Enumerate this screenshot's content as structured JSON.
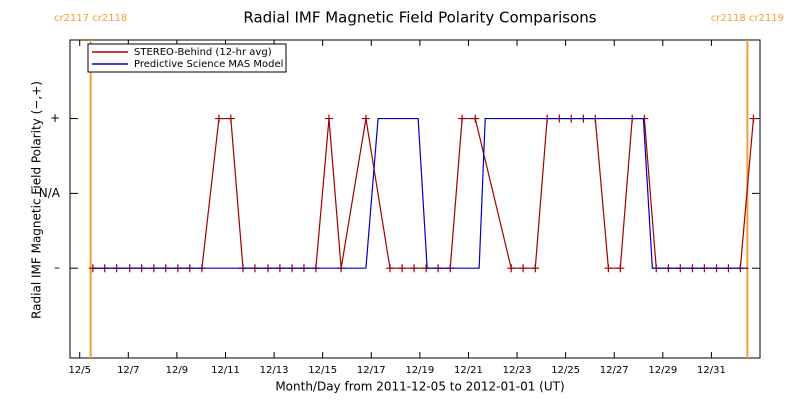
{
  "chart_data": {
    "type": "line",
    "title": "Radial IMF Magnetic Field Polarity Comparisons",
    "x_label": "Month/Day from 2011-12-05 to 2012-01-01 (UT)",
    "y_label": "Radial IMF Magnetic Field Polarity (−,+)",
    "xlim": [
      -0.4,
      28
    ],
    "ylim": [
      -2.2,
      2.05
    ],
    "xticks": [
      {
        "value": 0,
        "label": "12/5"
      },
      {
        "value": 2,
        "label": "12/7"
      },
      {
        "value": 4,
        "label": "12/9"
      },
      {
        "value": 6,
        "label": "12/11"
      },
      {
        "value": 8,
        "label": "12/13"
      },
      {
        "value": 10,
        "label": "12/15"
      },
      {
        "value": 12,
        "label": "12/17"
      },
      {
        "value": 14,
        "label": "12/19"
      },
      {
        "value": 16,
        "label": "12/21"
      },
      {
        "value": 18,
        "label": "12/23"
      },
      {
        "value": 20,
        "label": "12/25"
      },
      {
        "value": 22,
        "label": "12/27"
      },
      {
        "value": 24,
        "label": "12/29"
      },
      {
        "value": 26,
        "label": "12/31"
      }
    ],
    "yticks": [
      {
        "value": 1,
        "label": "+"
      },
      {
        "value": 0,
        "label": "N/A"
      },
      {
        "value": -1,
        "label": "–"
      }
    ],
    "legend_position": "upper left",
    "carrington_lines": {
      "color": "#f0a030",
      "lines": [
        {
          "x": 0.45,
          "label": "cr2117 cr2118"
        },
        {
          "x": 27.48,
          "label": "cr2118 cr2119"
        }
      ]
    },
    "series": [
      {
        "name": "STEREO-Behind (12-hr avg)",
        "color": "#a00000",
        "markers": true,
        "x": [
          0.54,
          1.03,
          1.52,
          2.06,
          2.55,
          3.05,
          3.54,
          4.04,
          4.53,
          5.03,
          5.73,
          6.22,
          6.72,
          7.21,
          7.75,
          8.24,
          8.74,
          9.23,
          9.72,
          10.26,
          10.76,
          11.78,
          12.77,
          13.27,
          13.76,
          14.26,
          14.75,
          15.25,
          15.74,
          16.28,
          17.76,
          18.25,
          18.75,
          19.24,
          19.74,
          20.23,
          20.73,
          21.22,
          21.76,
          22.25,
          22.74,
          23.24,
          23.73,
          24.23,
          24.72,
          25.22,
          25.71,
          26.21,
          26.7,
          27.19,
          27.73
        ],
        "values": [
          -1,
          -1,
          -1,
          -1,
          -1,
          -1,
          -1,
          -1,
          -1,
          -1,
          1,
          1,
          -1,
          -1,
          -1,
          -1,
          -1,
          -1,
          -1,
          1,
          -1,
          1,
          -1,
          -1,
          -1,
          -1,
          -1,
          -1,
          1,
          1,
          -1,
          -1,
          -1,
          1,
          1,
          1,
          1,
          1,
          -1,
          -1,
          1,
          1,
          -1,
          -1,
          -1,
          -1,
          -1,
          -1,
          -1,
          -1,
          1
        ]
      },
      {
        "name": "Predictive Science MAS Model",
        "color": "#0000c0",
        "markers": false,
        "x": [
          0.54,
          11.78,
          12.28,
          13.93,
          14.3,
          16.44,
          16.69,
          23.2,
          23.57,
          27.52
        ],
        "values": [
          -1,
          -1,
          1,
          1,
          -1,
          -1,
          1,
          1,
          -1,
          -1
        ]
      }
    ]
  }
}
